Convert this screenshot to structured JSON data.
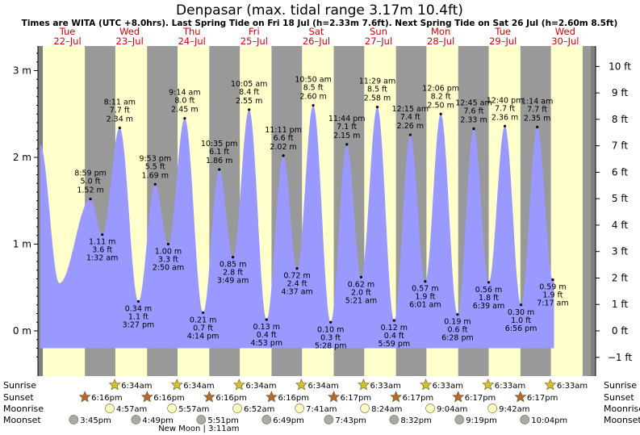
{
  "chart_data": {
    "type": "area",
    "title": "Denpasar (max. tidal range 3.17m 10.4ft)",
    "subtitle": "Times are WITA (UTC +8.0hrs). Last Spring Tide on Fri 18 Jul (h=2.33m 7.6ft). Next Spring Tide on Sat 26 Jul (h=2.60m 8.5ft)",
    "ylim_m": [
      -0.38,
      3.28
    ],
    "y_ticks_m": [
      "3 m",
      "2 m",
      "1 m",
      "0 m"
    ],
    "y_ticks_m_values": [
      3,
      2,
      1,
      0
    ],
    "y_ticks_ft": [
      "10 ft",
      "9 ft",
      "8 ft",
      "7 ft",
      "6 ft",
      "5 ft",
      "4 ft",
      "3 ft",
      "2 ft",
      "1 ft",
      "0 ft",
      "−1 ft"
    ],
    "y_ticks_ft_values": [
      10,
      9,
      8,
      7,
      6,
      5,
      4,
      3,
      2,
      1,
      0,
      -1
    ],
    "day_labels": [
      {
        "dow": "Tue",
        "date": "22–Jul",
        "day": 0
      },
      {
        "dow": "Wed",
        "date": "23–Jul",
        "day": 1
      },
      {
        "dow": "Thu",
        "date": "24–Jul",
        "day": 2
      },
      {
        "dow": "Fri",
        "date": "25–Jul",
        "day": 3
      },
      {
        "dow": "Sat",
        "date": "26–Jul",
        "day": 4
      },
      {
        "dow": "Sun",
        "date": "27–Jul",
        "day": 5
      },
      {
        "dow": "Mon",
        "date": "28–Jul",
        "day": 6
      },
      {
        "dow": "Tue",
        "date": "29–Jul",
        "day": 7
      },
      {
        "dow": "Wed",
        "date": "30–Jul",
        "day": 8
      }
    ],
    "extremes": [
      {
        "type": "low",
        "t": 0.37,
        "h": 0.55
      },
      {
        "type": "high",
        "t": 0.87,
        "h": 1.52,
        "time": "8:59 pm",
        "ft": "5.0 ft",
        "m": "1.52 m"
      },
      {
        "type": "low",
        "t": 1.06,
        "h": 1.11,
        "time": "1:32 am",
        "ft": "3.6 ft",
        "m": "1.11 m"
      },
      {
        "type": "high",
        "t": 1.34,
        "h": 2.34,
        "time": "8:11 am",
        "ft": "7.7 ft",
        "m": "2.34 m"
      },
      {
        "type": "low",
        "t": 1.64,
        "h": 0.34,
        "time": "3:27 pm",
        "ft": "1.1 ft",
        "m": "0.34 m"
      },
      {
        "type": "high",
        "t": 1.91,
        "h": 1.69,
        "time": "9:53 pm",
        "ft": "5.5 ft",
        "m": "1.69 m"
      },
      {
        "type": "low",
        "t": 2.12,
        "h": 1.0,
        "time": "2:50 am",
        "ft": "3.3 ft",
        "m": "1.00 m"
      },
      {
        "type": "high",
        "t": 2.385,
        "h": 2.45,
        "time": "9:14 am",
        "ft": "8.0 ft",
        "m": "2.45 m"
      },
      {
        "type": "low",
        "t": 2.68,
        "h": 0.21,
        "time": "4:14 pm",
        "ft": "0.7 ft",
        "m": "0.21 m"
      },
      {
        "type": "high",
        "t": 2.94,
        "h": 1.86,
        "time": "10:35 pm",
        "ft": "6.1 ft",
        "m": "1.86 m"
      },
      {
        "type": "low",
        "t": 3.16,
        "h": 0.85,
        "time": "3:49 am",
        "ft": "2.8 ft",
        "m": "0.85 m"
      },
      {
        "type": "high",
        "t": 3.42,
        "h": 2.55,
        "time": "10:05 am",
        "ft": "8.4 ft",
        "m": "2.55 m"
      },
      {
        "type": "low",
        "t": 3.7,
        "h": 0.13,
        "time": "4:53 pm",
        "ft": "0.4 ft",
        "m": "0.13 m"
      },
      {
        "type": "high",
        "t": 3.97,
        "h": 2.02,
        "time": "11:11 pm",
        "ft": "6.6 ft",
        "m": "2.02 m"
      },
      {
        "type": "low",
        "t": 4.19,
        "h": 0.72,
        "time": "4:37 am",
        "ft": "2.4 ft",
        "m": "0.72 m"
      },
      {
        "type": "high",
        "t": 4.45,
        "h": 2.6,
        "time": "10:50 am",
        "ft": "8.5 ft",
        "m": "2.60 m"
      },
      {
        "type": "low",
        "t": 4.73,
        "h": 0.1,
        "time": "5:28 pm",
        "ft": "0.3 ft",
        "m": "0.10 m"
      },
      {
        "type": "high",
        "t": 4.99,
        "h": 2.15,
        "time": "11:44 pm",
        "ft": "7.1 ft",
        "m": "2.15 m"
      },
      {
        "type": "low",
        "t": 5.22,
        "h": 0.62,
        "time": "5:21 am",
        "ft": "2.0 ft",
        "m": "0.62 m"
      },
      {
        "type": "high",
        "t": 5.48,
        "h": 2.58,
        "time": "11:29 am",
        "ft": "8.5 ft",
        "m": "2.58 m"
      },
      {
        "type": "low",
        "t": 5.75,
        "h": 0.12,
        "time": "5:59 pm",
        "ft": "0.4 ft",
        "m": "0.12 m"
      },
      {
        "type": "high",
        "t": 6.01,
        "h": 2.26,
        "time": "12:15 am",
        "ft": "7.4 ft",
        "m": "2.26 m"
      },
      {
        "type": "low",
        "t": 6.25,
        "h": 0.57,
        "time": "6:01 am",
        "ft": "1.9 ft",
        "m": "0.57 m"
      },
      {
        "type": "high",
        "t": 6.5,
        "h": 2.5,
        "time": "12:06 pm",
        "ft": "8.2 ft",
        "m": "2.50 m"
      },
      {
        "type": "low",
        "t": 6.77,
        "h": 0.19,
        "time": "6:28 pm",
        "ft": "0.6 ft",
        "m": "0.19 m"
      },
      {
        "type": "high",
        "t": 7.03,
        "h": 2.33,
        "time": "12:45 am",
        "ft": "7.6 ft",
        "m": "2.33 m"
      },
      {
        "type": "low",
        "t": 7.27,
        "h": 0.56,
        "time": "6:39 am",
        "ft": "1.8 ft",
        "m": "0.56 m"
      },
      {
        "type": "high",
        "t": 7.53,
        "h": 2.36,
        "time": "12:40 pm",
        "ft": "7.7 ft",
        "m": "2.36 m"
      },
      {
        "type": "low",
        "t": 7.79,
        "h": 0.3,
        "time": "6:56 pm",
        "ft": "1.0 ft",
        "m": "0.30 m"
      },
      {
        "type": "high",
        "t": 8.05,
        "h": 2.35,
        "time": "1:14 am",
        "ft": "7.7 ft",
        "m": "2.35 m"
      },
      {
        "type": "low",
        "t": 8.3,
        "h": 0.59,
        "time": "7:17 am",
        "ft": "1.9 ft",
        "m": "0.59 m"
      }
    ],
    "colors": {
      "day": "#ffffcc",
      "night": "#999999",
      "water": "#9999ff",
      "edge": "#808080",
      "day_label": "#d40000",
      "sun": "#d4c02a",
      "sunset": "#b46a2e",
      "moon": "#ffffbb",
      "moonset": "#aaaaa0"
    }
  },
  "rows": {
    "sunrise": {
      "label": "Sunrise",
      "events": [
        {
          "t": 1.26,
          "text": "6:34am"
        },
        {
          "t": 2.26,
          "text": "6:34am"
        },
        {
          "t": 3.26,
          "text": "6:34am"
        },
        {
          "t": 4.26,
          "text": "6:34am"
        },
        {
          "t": 5.26,
          "text": "6:33am"
        },
        {
          "t": 6.26,
          "text": "6:33am"
        },
        {
          "t": 7.26,
          "text": "6:33am"
        },
        {
          "t": 8.26,
          "text": "6:33am"
        }
      ]
    },
    "sunset": {
      "label": "Sunset",
      "events": [
        {
          "t": 0.78,
          "text": "6:16pm"
        },
        {
          "t": 1.78,
          "text": "6:16pm"
        },
        {
          "t": 2.78,
          "text": "6:16pm"
        },
        {
          "t": 3.78,
          "text": "6:16pm"
        },
        {
          "t": 4.78,
          "text": "6:17pm"
        },
        {
          "t": 5.78,
          "text": "6:17pm"
        },
        {
          "t": 6.78,
          "text": "6:17pm"
        },
        {
          "t": 7.78,
          "text": "6:17pm"
        }
      ]
    },
    "moonrise": {
      "label": "Moonrise",
      "events": [
        {
          "t": 1.18,
          "text": "4:57am"
        },
        {
          "t": 2.18,
          "text": "5:57am"
        },
        {
          "t": 3.23,
          "text": "6:52am"
        },
        {
          "t": 4.23,
          "text": "7:41am"
        },
        {
          "t": 5.28,
          "text": "8:24am"
        },
        {
          "t": 6.33,
          "text": "9:04am"
        },
        {
          "t": 7.33,
          "text": "9:42am"
        }
      ]
    },
    "moonset": {
      "label": "Moonset",
      "events": [
        {
          "t": 0.6,
          "text": "3:45pm"
        },
        {
          "t": 1.6,
          "text": "4:49pm"
        },
        {
          "t": 2.65,
          "text": "5:51pm"
        },
        {
          "t": 3.7,
          "text": "6:49pm"
        },
        {
          "t": 4.7,
          "text": "7:43pm"
        },
        {
          "t": 5.75,
          "text": "8:32pm"
        },
        {
          "t": 6.8,
          "text": "9:19pm"
        },
        {
          "t": 7.85,
          "text": "10:04pm"
        }
      ]
    },
    "new_moon": "New Moon | 3:11am"
  }
}
